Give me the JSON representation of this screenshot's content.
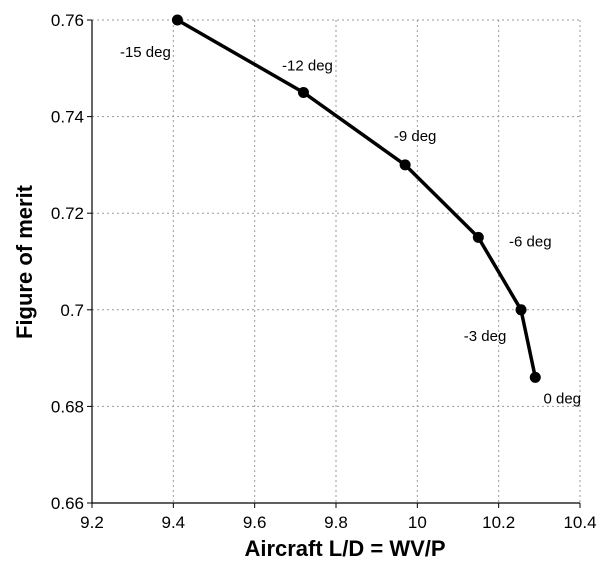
{
  "chart_data": {
    "type": "line",
    "title": "",
    "xlabel": "Aircraft L/D = WV/P",
    "ylabel": "Figure of merit",
    "xlim": [
      9.2,
      10.4
    ],
    "ylim": [
      0.66,
      0.76
    ],
    "xticks": [
      "9.2",
      "9.4",
      "9.6",
      "9.8",
      "10",
      "10.2",
      "10.4"
    ],
    "yticks": [
      "0.66",
      "0.68",
      "0.7",
      "0.72",
      "0.74",
      "0.76"
    ],
    "grid": true,
    "series": [
      {
        "x": [
          9.41,
          9.72,
          9.97,
          10.15,
          10.255,
          10.29
        ],
        "y": [
          0.76,
          0.745,
          0.73,
          0.715,
          0.7,
          0.686
        ],
        "labels": [
          "-15 deg",
          "-12 deg",
          "-9 deg",
          "-6 deg",
          "-3 deg",
          "0 deg"
        ],
        "color": "#000000"
      }
    ]
  }
}
